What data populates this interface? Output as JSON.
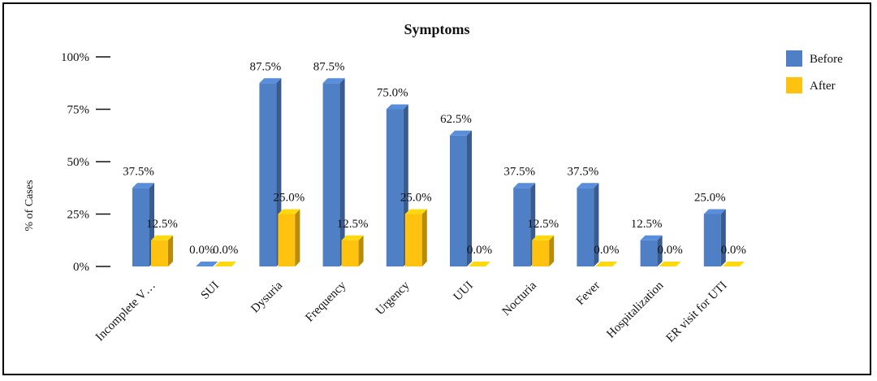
{
  "chart_data": {
    "type": "bar",
    "title": "Symptoms",
    "ylabel": "% of Cases",
    "xlabel": "",
    "ylim": [
      0,
      100
    ],
    "yticks": [
      "0%",
      "25%",
      "50%",
      "75%",
      "100%"
    ],
    "categories": [
      "Incomplete V…",
      "SUI",
      "Dysuria",
      "Frequency",
      "Urgency",
      "UUI",
      "Nocturia",
      "Fever",
      "Hospitalization",
      "ER visit for UTI"
    ],
    "series": [
      {
        "name": "Before",
        "color": "#4F7FC4",
        "values": [
          37.5,
          0.0,
          87.5,
          87.5,
          75.0,
          62.5,
          37.5,
          37.5,
          12.5,
          25.0
        ]
      },
      {
        "name": "After",
        "color": "#FFC20E",
        "values": [
          12.5,
          0.0,
          25.0,
          12.5,
          25.0,
          0.0,
          12.5,
          0.0,
          0.0,
          0.0
        ]
      }
    ],
    "legend": "right",
    "grid": false
  }
}
